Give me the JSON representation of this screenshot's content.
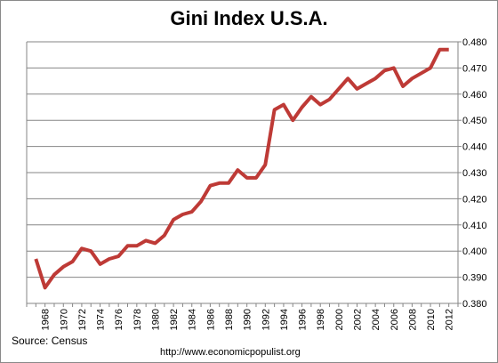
{
  "chart_data": {
    "type": "line",
    "title": "Gini Index U.S.A.",
    "xlabel": "",
    "ylabel": "",
    "x": [
      1967,
      1968,
      1969,
      1970,
      1971,
      1972,
      1973,
      1974,
      1975,
      1976,
      1977,
      1978,
      1979,
      1980,
      1981,
      1982,
      1983,
      1984,
      1985,
      1986,
      1987,
      1988,
      1989,
      1990,
      1991,
      1992,
      1993,
      1994,
      1995,
      1996,
      1997,
      1998,
      1999,
      2000,
      2001,
      2002,
      2003,
      2004,
      2005,
      2006,
      2007,
      2008,
      2009,
      2010,
      2011,
      2012
    ],
    "values": [
      0.397,
      0.386,
      0.391,
      0.394,
      0.396,
      0.401,
      0.4,
      0.395,
      0.397,
      0.398,
      0.402,
      0.402,
      0.404,
      0.403,
      0.406,
      0.412,
      0.414,
      0.415,
      0.419,
      0.425,
      0.426,
      0.426,
      0.431,
      0.428,
      0.428,
      0.433,
      0.454,
      0.456,
      0.45,
      0.455,
      0.459,
      0.456,
      0.458,
      0.462,
      0.466,
      0.462,
      0.464,
      0.466,
      0.469,
      0.47,
      0.463,
      0.466,
      0.468,
      0.47,
      0.477,
      0.477
    ],
    "x_tick_labels": [
      "1968",
      "1970",
      "1972",
      "1974",
      "1976",
      "1978",
      "1980",
      "1982",
      "1984",
      "1986",
      "1988",
      "1990",
      "1992",
      "1994",
      "1996",
      "1998",
      "2000",
      "2002",
      "2004",
      "2006",
      "2008",
      "2010",
      "2012"
    ],
    "y_tick_labels": [
      "0.380",
      "0.390",
      "0.400",
      "0.410",
      "0.420",
      "0.430",
      "0.440",
      "0.450",
      "0.460",
      "0.470",
      "0.480"
    ],
    "ylim": [
      0.38,
      0.48
    ],
    "xlim": [
      1966,
      2013
    ],
    "y_axis_side": "right",
    "grid": "horizontal",
    "legend": "none",
    "line_color": "#be3a36"
  },
  "footer": {
    "source": "Source:  Census",
    "url": "http://www.economicpopulist.org"
  }
}
